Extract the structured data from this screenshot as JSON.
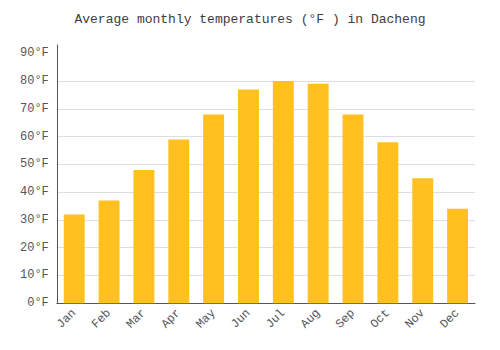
{
  "chart_data": {
    "type": "bar",
    "title": "Average monthly temperatures (°F ) in Dacheng",
    "categories": [
      "Jan",
      "Feb",
      "Mar",
      "Apr",
      "May",
      "Jun",
      "Jul",
      "Aug",
      "Sep",
      "Oct",
      "Nov",
      "Dec"
    ],
    "values": [
      32,
      37,
      48,
      59,
      68,
      77,
      80,
      79,
      68,
      58,
      45,
      34
    ],
    "color": "#FFC020",
    "ylim": [
      0,
      93
    ],
    "yticks": [
      {
        "value": 0,
        "label": "0°F"
      },
      {
        "value": 10,
        "label": "10°F"
      },
      {
        "value": 20,
        "label": "20°F"
      },
      {
        "value": 30,
        "label": "30°F"
      },
      {
        "value": 40,
        "label": "40°F"
      },
      {
        "value": 50,
        "label": "50°F"
      },
      {
        "value": 60,
        "label": "60°F"
      },
      {
        "value": 70,
        "label": "70°F"
      },
      {
        "value": 80,
        "label": "80°F"
      },
      {
        "value": 90,
        "label": "90°F"
      }
    ],
    "grid": true
  }
}
